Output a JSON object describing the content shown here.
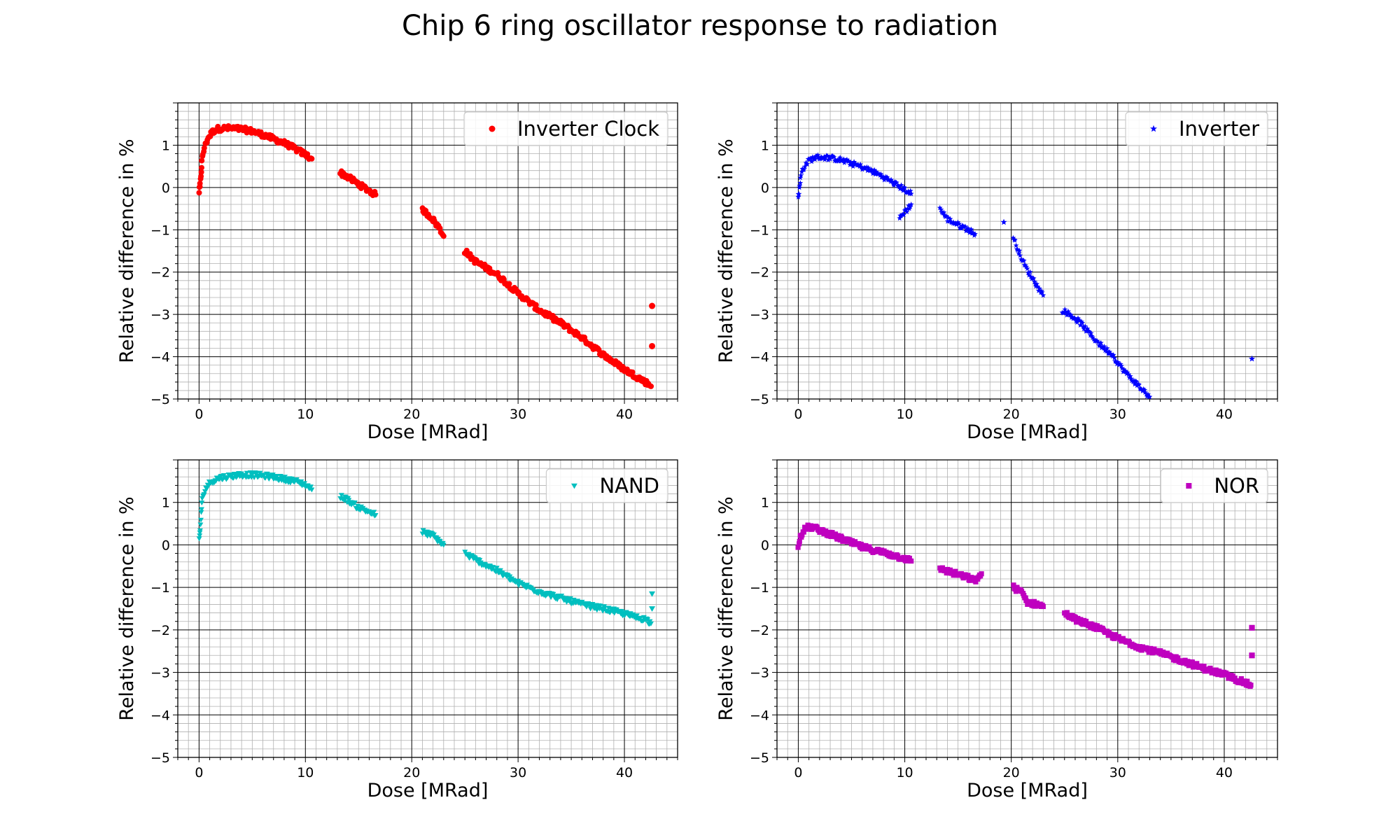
{
  "figure": {
    "title": "Chip 6 ring oscillator response to radiation"
  },
  "chart_data": [
    {
      "type": "scatter",
      "panel": "top-left",
      "xlabel": "Dose [MRad]",
      "ylabel": "Relative difference in %",
      "xlim": [
        -2,
        45
      ],
      "ylim": [
        -5,
        2
      ],
      "xticks": [
        0,
        10,
        20,
        30,
        40
      ],
      "yticks": [
        1,
        0,
        -1,
        -2,
        -3,
        -4,
        -5
      ],
      "grid": "major and minor",
      "legend_position": "top-right",
      "series": [
        {
          "name": "Inverter Clock",
          "color": "#ff0000",
          "marker": "circle",
          "segments": [
            {
              "x": [
                0,
                0.1,
                0.2,
                0.3,
                0.5,
                0.8,
                1.2,
                1.6,
                2.2,
                3,
                4,
                5,
                6,
                7,
                8,
                9,
                10,
                10.6
              ],
              "y": [
                -0.1,
                0.05,
                0.4,
                0.7,
                0.95,
                1.15,
                1.3,
                1.38,
                1.4,
                1.4,
                1.38,
                1.33,
                1.25,
                1.15,
                1.05,
                0.92,
                0.78,
                0.68
              ]
            },
            {
              "x": [
                13.3,
                14,
                15,
                16,
                16.6
              ],
              "y": [
                0.35,
                0.25,
                0.08,
                -0.08,
                -0.17
              ]
            },
            {
              "x": [
                21,
                21.8,
                22.5,
                23
              ],
              "y": [
                -0.52,
                -0.7,
                -0.92,
                -1.15
              ]
            },
            {
              "x": [
                25,
                26,
                28,
                30,
                32,
                34,
                36,
                38,
                40,
                41,
                42,
                42.5
              ],
              "y": [
                -1.5,
                -1.75,
                -2.05,
                -2.5,
                -2.9,
                -3.2,
                -3.55,
                -3.95,
                -4.3,
                -4.45,
                -4.6,
                -4.7
              ]
            },
            {
              "x": [
                42.6,
                42.6
              ],
              "y": [
                -2.8,
                -3.75
              ]
            }
          ]
        }
      ]
    },
    {
      "type": "scatter",
      "panel": "top-right",
      "xlabel": "Dose [MRad]",
      "ylabel": "Relative difference in %",
      "xlim": [
        -2,
        45
      ],
      "ylim": [
        -5,
        2
      ],
      "xticks": [
        0,
        10,
        20,
        30,
        40
      ],
      "yticks": [
        1,
        0,
        -1,
        -2,
        -3,
        -4,
        -5
      ],
      "grid": "major and minor",
      "legend_position": "top-right",
      "series": [
        {
          "name": "Inverter",
          "color": "#0000ff",
          "marker": "star",
          "segments": [
            {
              "x": [
                0,
                0.1,
                0.2,
                0.4,
                0.7,
                1,
                1.5,
                2,
                3,
                4,
                5,
                6,
                7,
                8,
                9,
                10,
                10.6
              ],
              "y": [
                -0.2,
                -0.05,
                0.2,
                0.42,
                0.55,
                0.64,
                0.7,
                0.72,
                0.7,
                0.65,
                0.57,
                0.48,
                0.38,
                0.25,
                0.1,
                -0.05,
                -0.15
              ]
            },
            {
              "x": [
                9.5,
                10.6
              ],
              "y": [
                -0.72,
                -0.4
              ]
            },
            {
              "x": [
                13.3,
                14,
                15,
                16,
                16.6
              ],
              "y": [
                -0.5,
                -0.75,
                -0.88,
                -1.0,
                -1.1
              ]
            },
            {
              "x": [
                19.3
              ],
              "y": [
                -0.82
              ]
            },
            {
              "x": [
                20.2,
                21,
                21.5,
                22,
                22.5,
                23
              ],
              "y": [
                -1.2,
                -1.7,
                -1.95,
                -2.15,
                -2.35,
                -2.55
              ]
            },
            {
              "x": [
                24.8,
                25.5,
                26.5,
                27.5,
                28.5,
                29.5,
                30,
                31,
                32,
                33
              ],
              "y": [
                -2.9,
                -3.0,
                -3.2,
                -3.5,
                -3.75,
                -3.95,
                -4.15,
                -4.45,
                -4.7,
                -4.95
              ]
            },
            {
              "x": [
                42.6
              ],
              "y": [
                -4.05
              ]
            }
          ]
        }
      ]
    },
    {
      "type": "scatter",
      "panel": "bottom-left",
      "xlabel": "Dose [MRad]",
      "ylabel": "Relative difference in %",
      "xlim": [
        -2,
        45
      ],
      "ylim": [
        -5,
        2
      ],
      "xticks": [
        0,
        10,
        20,
        30,
        40
      ],
      "yticks": [
        1,
        0,
        -1,
        -2,
        -3,
        -4,
        -5
      ],
      "grid": "major and minor",
      "legend_position": "top-right",
      "series": [
        {
          "name": "NAND",
          "color": "#00bfbf",
          "marker": "triangle-down",
          "segments": [
            {
              "x": [
                0,
                0.1,
                0.2,
                0.3,
                0.5,
                0.8,
                1.2,
                2,
                3,
                4,
                5,
                6,
                7,
                8,
                9,
                10,
                10.6
              ],
              "y": [
                0.1,
                0.35,
                0.75,
                1.05,
                1.25,
                1.4,
                1.5,
                1.58,
                1.62,
                1.65,
                1.65,
                1.63,
                1.6,
                1.55,
                1.5,
                1.42,
                1.3
              ]
            },
            {
              "x": [
                13.3,
                14,
                15,
                16,
                16.6
              ],
              "y": [
                1.15,
                1.05,
                0.88,
                0.78,
                0.7
              ]
            },
            {
              "x": [
                21,
                22,
                23
              ],
              "y": [
                0.3,
                0.22,
                0.0
              ]
            },
            {
              "x": [
                25,
                26,
                28,
                30,
                32,
                34,
                36,
                38,
                40,
                41,
                42,
                42.5
              ],
              "y": [
                -0.2,
                -0.35,
                -0.6,
                -0.9,
                -1.1,
                -1.25,
                -1.4,
                -1.5,
                -1.62,
                -1.7,
                -1.75,
                -1.85
              ]
            },
            {
              "x": [
                42.6,
                42.6
              ],
              "y": [
                -1.15,
                -1.5
              ]
            }
          ]
        }
      ]
    },
    {
      "type": "scatter",
      "panel": "bottom-right",
      "xlabel": "Dose [MRad]",
      "ylabel": "Relative difference in %",
      "xlim": [
        -2,
        45
      ],
      "ylim": [
        -5,
        2
      ],
      "xticks": [
        0,
        10,
        20,
        30,
        40
      ],
      "yticks": [
        1,
        0,
        -1,
        -2,
        -3,
        -4,
        -5
      ],
      "grid": "major and minor",
      "legend_position": "top-right",
      "series": [
        {
          "name": "NOR",
          "color": "#bf00bf",
          "marker": "square",
          "segments": [
            {
              "x": [
                0,
                0.2,
                0.5,
                1,
                1.5,
                2,
                3,
                4,
                5,
                6,
                7,
                8,
                9,
                10,
                10.6
              ],
              "y": [
                0.0,
                0.2,
                0.35,
                0.42,
                0.4,
                0.35,
                0.25,
                0.15,
                0.05,
                -0.05,
                -0.12,
                -0.18,
                -0.25,
                -0.32,
                -0.38
              ]
            },
            {
              "x": [
                13.3,
                14,
                15,
                16,
                16.6,
                17.2
              ],
              "y": [
                -0.55,
                -0.62,
                -0.7,
                -0.78,
                -0.85,
                -0.68
              ]
            },
            {
              "x": [
                20.2,
                21,
                21.5,
                22,
                22.5,
                23
              ],
              "y": [
                -1.0,
                -1.12,
                -1.35,
                -1.38,
                -1.4,
                -1.45
              ]
            },
            {
              "x": [
                25,
                26,
                28,
                30,
                32,
                34,
                36,
                38,
                40,
                41,
                42,
                42.5
              ],
              "y": [
                -1.6,
                -1.75,
                -1.95,
                -2.2,
                -2.4,
                -2.55,
                -2.72,
                -2.9,
                -3.05,
                -3.15,
                -3.25,
                -3.3
              ]
            },
            {
              "x": [
                42.6,
                42.6
              ],
              "y": [
                -1.95,
                -2.6
              ]
            }
          ]
        }
      ]
    }
  ]
}
